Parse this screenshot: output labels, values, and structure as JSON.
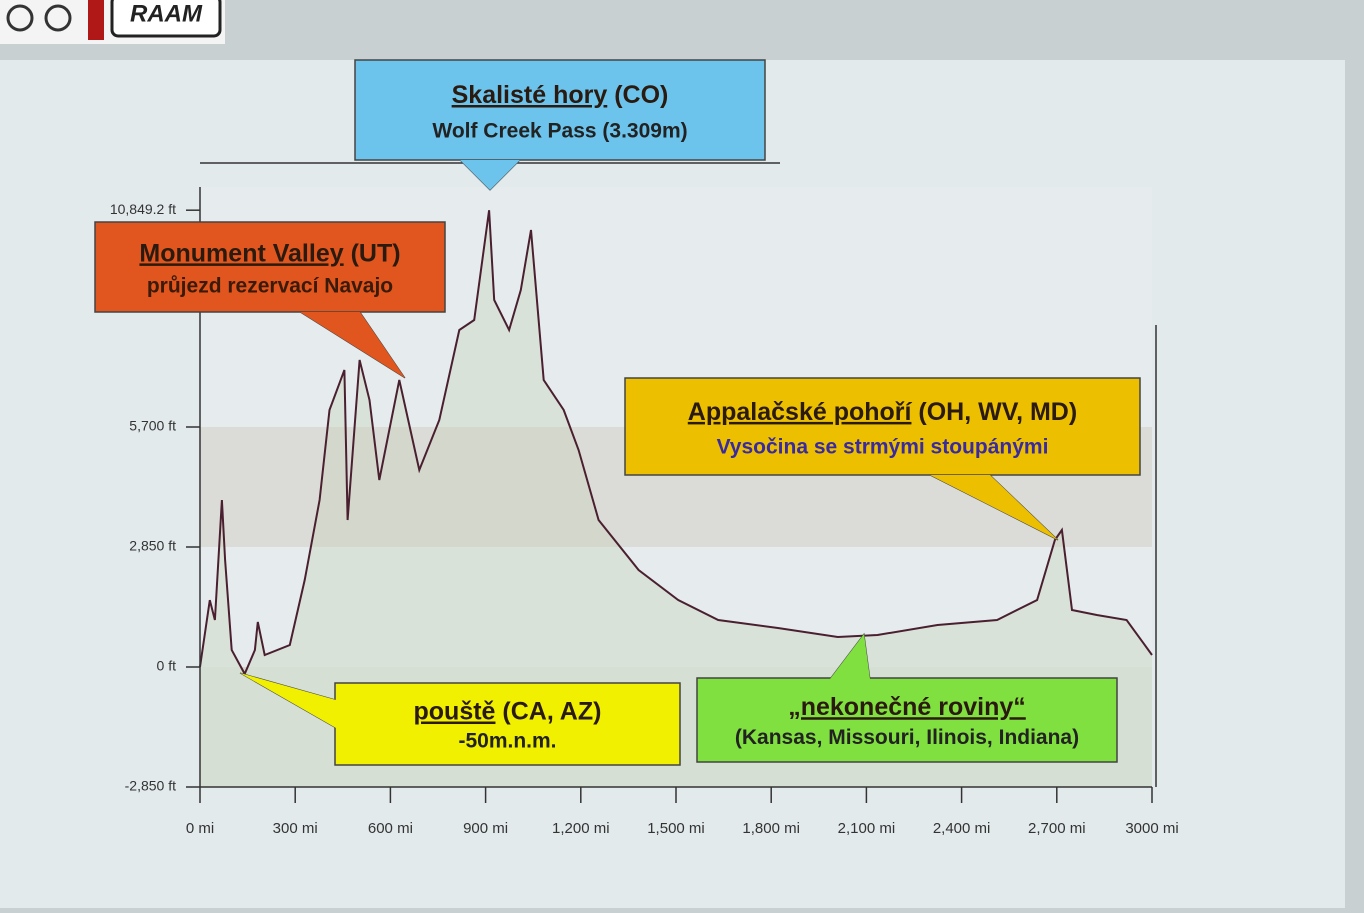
{
  "logo": "RAAM",
  "chart_data": {
    "type": "line",
    "x": [
      0,
      31,
      47,
      69,
      79,
      100,
      141,
      173,
      182,
      204,
      283,
      330,
      377,
      408,
      455,
      465,
      503,
      534,
      565,
      628,
      691,
      754,
      817,
      864,
      911,
      927,
      974,
      1011,
      1043,
      1083,
      1146,
      1193,
      1256,
      1382,
      1507,
      1633,
      1821,
      2010,
      2135,
      2324,
      2512,
      2638,
      2694,
      2716,
      2748,
      2826,
      2920,
      3000
    ],
    "series": [
      {
        "color": "#4a2030",
        "values": [
          0,
          1590,
          1116,
          3966,
          2541,
          404,
          -164,
          404,
          1069,
          285,
          523,
          2066,
          3966,
          6104,
          7054,
          3491,
          7291,
          6341,
          4441,
          6816,
          4679,
          5866,
          8004,
          8241,
          10849,
          8716,
          8004,
          8954,
          10379,
          6816,
          6104,
          5154,
          3491,
          2304,
          1591,
          1116,
          926,
          713,
          760,
          998,
          1116,
          1591,
          3016,
          3254,
          1354,
          1235,
          1116,
          285
        ]
      }
    ],
    "fill": "#d6e0d4",
    "xlim": [
      0,
      3000
    ],
    "xticks": [
      {
        "value": 0,
        "label": "0 mi"
      },
      {
        "value": 300,
        "label": "300 mi"
      },
      {
        "value": 600,
        "label": "600 mi"
      },
      {
        "value": 900,
        "label": "900 mi"
      },
      {
        "value": 1200,
        "label": "1,200 mi"
      },
      {
        "value": 1500,
        "label": "1,500 mi"
      },
      {
        "value": 1800,
        "label": "1,800 mi"
      },
      {
        "value": 2100,
        "label": "2,100 mi"
      },
      {
        "value": 2400,
        "label": "2,400 mi"
      },
      {
        "value": 2700,
        "label": "2,700 mi"
      },
      {
        "value": 3000,
        "label": "3000 mi"
      }
    ],
    "ylim": [
      -2850,
      11400
    ],
    "yticks": [
      {
        "value": -2850,
        "label": "-2,850 ft"
      },
      {
        "value": 0,
        "label": "0 ft"
      },
      {
        "value": 2850,
        "label": "2,850 ft"
      },
      {
        "value": 5700,
        "label": "5,700 ft"
      },
      {
        "value": 10849.2,
        "label": "10,849.2 ft"
      }
    ],
    "annotations": [
      {
        "heading": "Skalisté hory",
        "heading_rest": " (CO)",
        "text": "Wolf Creek Pass (3.309m)",
        "color": "#6cc4ec",
        "text_color": "#222222"
      },
      {
        "heading": "Monument Valley",
        "heading_rest": " (UT)",
        "text": "průjezd rezervací Navajo",
        "color": "#e0561e",
        "text_color": "#3a1a0a"
      },
      {
        "heading": "Appalačské pohoří",
        "heading_rest": " (OH, WV, MD)",
        "text": "Vysočina se strmými stoupánými",
        "color": "#ecc000",
        "text_color": "#3a2aa0"
      },
      {
        "heading": "pouště",
        "heading_rest": " (CA, AZ)",
        "text": "-50m.n.m.",
        "color": "#f0f000",
        "text_color": "#222222"
      },
      {
        "heading": "„nekonečné roviny“",
        "text": "(Kansas, Missouri, Ilinois, Indiana)",
        "color": "#80e040",
        "text_color": "#222222"
      }
    ]
  }
}
